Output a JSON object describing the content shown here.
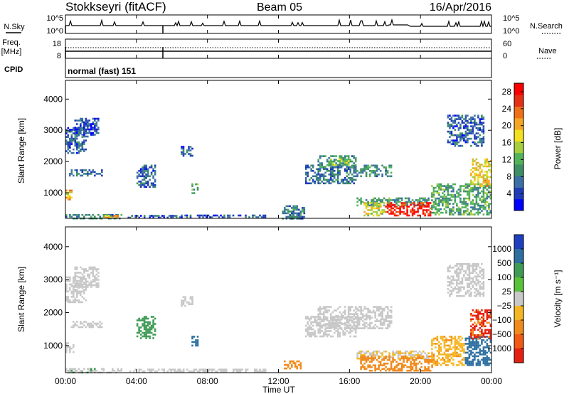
{
  "header": {
    "station": "Stokkseyri (fitACF)",
    "beam": "Beam 05",
    "date": "16/Apr/2016"
  },
  "panels": {
    "nsky": {
      "label": "N.Sky",
      "ticks_left": [
        "10^5",
        "10^0"
      ],
      "ticks_right": [
        "10^5",
        "10^0"
      ],
      "right_label": "N.Search"
    },
    "freq": {
      "label_line1": "Freq.",
      "label_line2": "[MHz]",
      "ticks_left": [
        "18",
        "8"
      ],
      "ticks_right": [
        "60",
        "0"
      ],
      "right_label": "Nave"
    },
    "cpid": {
      "label": "CPID",
      "value": "normal (fast) 151"
    }
  },
  "chart_data": [
    {
      "type": "heatmap",
      "panel": "power",
      "xlabel": "Time UT",
      "ylabel": "Slant Range [km]",
      "x_ticks": [
        "00:00",
        "04:00",
        "08:00",
        "12:00",
        "16:00",
        "20:00",
        "00:00"
      ],
      "xlim_hours": [
        0,
        24
      ],
      "y_ticks": [
        1000,
        2000,
        3000,
        4000
      ],
      "ylim": [
        180,
        4600
      ],
      "colorbar": {
        "label": "Power [dB]",
        "ticks": [
          4,
          8,
          12,
          16,
          20,
          24,
          28
        ],
        "range": [
          0,
          30
        ]
      },
      "regions": [
        {
          "t": [
            0.0,
            1.2
          ],
          "r": [
            2300,
            3100
          ],
          "v": 6
        },
        {
          "t": [
            0.5,
            1.9
          ],
          "r": [
            2800,
            3400
          ],
          "v": 5
        },
        {
          "t": [
            0.0,
            0.5
          ],
          "r": [
            800,
            1100
          ],
          "v": 20
        },
        {
          "t": [
            0.2,
            2.1
          ],
          "r": [
            1550,
            1750
          ],
          "v": 7
        },
        {
          "t": [
            0.0,
            3.2
          ],
          "r": [
            200,
            320
          ],
          "v": 9
        },
        {
          "t": [
            2.2,
            3.0
          ],
          "r": [
            180,
            290
          ],
          "v": 20
        },
        {
          "t": [
            3.5,
            6.3
          ],
          "r": [
            200,
            290
          ],
          "v": 6
        },
        {
          "t": [
            6.4,
            11.3
          ],
          "r": [
            210,
            300
          ],
          "v": 5
        },
        {
          "t": [
            4.0,
            5.1
          ],
          "r": [
            1200,
            1900
          ],
          "v": 6
        },
        {
          "t": [
            6.5,
            7.2
          ],
          "r": [
            2200,
            2500
          ],
          "v": 6
        },
        {
          "t": [
            7.1,
            7.5
          ],
          "r": [
            1000,
            1300
          ],
          "v": 11
        },
        {
          "t": [
            13.5,
            16.4
          ],
          "r": [
            1300,
            1900
          ],
          "v": 7
        },
        {
          "t": [
            14.2,
            16.4
          ],
          "r": [
            1850,
            2200
          ],
          "v": 9
        },
        {
          "t": [
            14.8,
            16.0
          ],
          "r": [
            1900,
            2100
          ],
          "v": 14
        },
        {
          "t": [
            16.4,
            18.4
          ],
          "r": [
            1550,
            1900
          ],
          "v": 9
        },
        {
          "t": [
            16.4,
            20.5
          ],
          "r": [
            600,
            850
          ],
          "v": 10
        },
        {
          "t": [
            16.8,
            18.0
          ],
          "r": [
            300,
            700
          ],
          "v": 17
        },
        {
          "t": [
            18.0,
            20.6
          ],
          "r": [
            250,
            700
          ],
          "v": 27
        },
        {
          "t": [
            20.6,
            24.0
          ],
          "r": [
            300,
            1300
          ],
          "v": 11
        },
        {
          "t": [
            21.5,
            23.6
          ],
          "r": [
            2500,
            3500
          ],
          "v": 6
        },
        {
          "t": [
            22.8,
            24.0
          ],
          "r": [
            1200,
            2100
          ],
          "v": 18
        },
        {
          "t": [
            12.2,
            13.5
          ],
          "r": [
            200,
            600
          ],
          "v": 8
        }
      ]
    },
    {
      "type": "heatmap",
      "panel": "velocity",
      "xlabel": "Time UT",
      "ylabel": "Slant Range [km]",
      "x_ticks": [
        "00:00",
        "04:00",
        "08:00",
        "12:00",
        "16:00",
        "20:00",
        "00:00"
      ],
      "xlim_hours": [
        0,
        24
      ],
      "y_ticks": [
        1000,
        2000,
        3000,
        4000
      ],
      "ylim": [
        180,
        4600
      ],
      "colorbar": {
        "label": "Velocity [m s⁻¹]",
        "ticks": [
          "1000",
          "500",
          "100",
          "25",
          "−25",
          "−100",
          "−500",
          "−1000"
        ]
      },
      "regions": [
        {
          "t": [
            0.0,
            1.2
          ],
          "r": [
            2300,
            3100
          ],
          "v": 0
        },
        {
          "t": [
            0.5,
            1.9
          ],
          "r": [
            2800,
            3400
          ],
          "v": 0
        },
        {
          "t": [
            0.0,
            0.5
          ],
          "r": [
            800,
            1100
          ],
          "v": 0
        },
        {
          "t": [
            0.2,
            2.1
          ],
          "r": [
            1550,
            1750
          ],
          "v": 0
        },
        {
          "t": [
            0.0,
            3.2
          ],
          "r": [
            200,
            320
          ],
          "v": 10
        },
        {
          "t": [
            3.5,
            11.3
          ],
          "r": [
            200,
            300
          ],
          "v": 0
        },
        {
          "t": [
            4.0,
            5.1
          ],
          "r": [
            1200,
            1900
          ],
          "v": 60
        },
        {
          "t": [
            6.5,
            7.2
          ],
          "r": [
            2200,
            2500
          ],
          "v": 0
        },
        {
          "t": [
            7.1,
            7.5
          ],
          "r": [
            1000,
            1300
          ],
          "v": 250
        },
        {
          "t": [
            12.3,
            13.3
          ],
          "r": [
            300,
            550
          ],
          "v": -200
        },
        {
          "t": [
            13.5,
            16.4
          ],
          "r": [
            1300,
            1900
          ],
          "v": 0
        },
        {
          "t": [
            14.2,
            18.4
          ],
          "r": [
            1550,
            2200
          ],
          "v": 0
        },
        {
          "t": [
            16.4,
            20.5
          ],
          "r": [
            600,
            850
          ],
          "v": -20
        },
        {
          "t": [
            16.6,
            20.8
          ],
          "r": [
            250,
            700
          ],
          "v": -300
        },
        {
          "t": [
            20.6,
            22.5
          ],
          "r": [
            400,
            1300
          ],
          "v": -80
        },
        {
          "t": [
            22.5,
            24.0
          ],
          "r": [
            400,
            1300
          ],
          "v": 300
        },
        {
          "t": [
            21.5,
            23.6
          ],
          "r": [
            2500,
            3500
          ],
          "v": 0
        },
        {
          "t": [
            22.8,
            24.0
          ],
          "r": [
            1200,
            2100
          ],
          "v": -600
        }
      ]
    }
  ]
}
